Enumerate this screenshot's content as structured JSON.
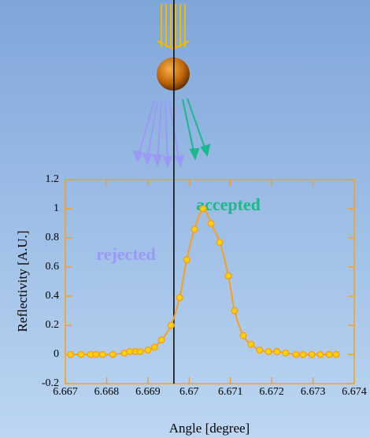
{
  "chart_data": {
    "type": "scatter",
    "x_label": "Angle [degree]",
    "y_label": "Reflectivity [A.U.]",
    "annotations": [
      "rejected",
      "accepted"
    ],
    "xlim": [
      6.667,
      6.674
    ],
    "xticks": [
      6.667,
      6.668,
      6.669,
      6.67,
      6.671,
      6.672,
      6.673,
      6.674
    ],
    "ylim": [
      -0.2,
      1.2
    ],
    "yticks": [
      -0.2,
      0,
      0.2,
      0.4,
      0.6,
      0.8,
      1,
      1.2
    ],
    "marker_x": 6.66963,
    "series": [
      {
        "color": "#f5a020",
        "x": [
          6.66713,
          6.66738,
          6.66761,
          6.66774,
          6.6679,
          6.66815,
          6.66843,
          6.66856,
          6.6687,
          6.66881,
          6.669,
          6.66916,
          6.66933,
          6.66956,
          6.66977,
          6.66994,
          6.67013,
          6.67034,
          6.67053,
          6.67074,
          6.67095,
          6.6711,
          6.67131,
          6.6715,
          6.67171,
          6.67192,
          6.67213,
          6.67234,
          6.67259,
          6.67276,
          6.67297,
          6.67318,
          6.67339,
          6.67356
        ],
        "values": [
          0,
          0,
          0,
          0,
          0,
          0,
          0.01,
          0.02,
          0.02,
          0.02,
          0.03,
          0.05,
          0.1,
          0.2,
          0.39,
          0.65,
          0.86,
          1.0,
          0.9,
          0.77,
          0.54,
          0.3,
          0.13,
          0.07,
          0.03,
          0.02,
          0.02,
          0.01,
          0,
          0,
          0,
          0,
          0,
          0
        ]
      }
    ]
  }
}
